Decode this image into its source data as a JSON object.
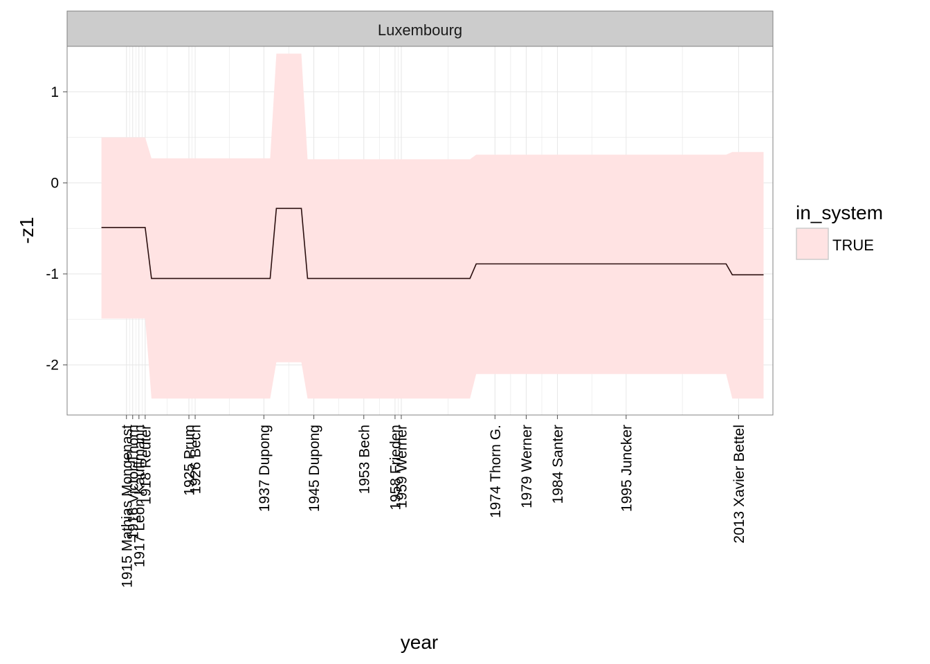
{
  "chart_data": {
    "type": "line",
    "facet": "Luxembourg",
    "xlabel": "year",
    "ylabel": "-z1",
    "ylim": [
      -2.55,
      1.5
    ],
    "xlim": [
      1905.5,
      2018.5
    ],
    "y_ticks": [
      1,
      0,
      -1,
      -2
    ],
    "x_ticks": [
      {
        "year": 1915,
        "label": "1915 Mathias Mongenast"
      },
      {
        "year": 1916,
        "label": "1916 Victor Thorn"
      },
      {
        "year": 1917,
        "label": "1917 Léon Kauffmann"
      },
      {
        "year": 1918,
        "label": "1918 Reuter"
      },
      {
        "year": 1925,
        "label": "1925 Prum"
      },
      {
        "year": 1926,
        "label": "1926 Bech"
      },
      {
        "year": 1937,
        "label": "1937 Dupong"
      },
      {
        "year": 1945,
        "label": "1945 Dupong"
      },
      {
        "year": 1953,
        "label": "1953 Bech"
      },
      {
        "year": 1958,
        "label": "1958 Frieden"
      },
      {
        "year": 1959,
        "label": "1959 Werner"
      },
      {
        "year": 1974,
        "label": "1974 Thorn G."
      },
      {
        "year": 1979,
        "label": "1979 Werner"
      },
      {
        "year": 1984,
        "label": "1984 Santer"
      },
      {
        "year": 1995,
        "label": "1995 Juncker"
      },
      {
        "year": 2013,
        "label": "2013 Xavier Bettel"
      }
    ],
    "x": [
      1911,
      1918,
      1919,
      1938,
      1939,
      1943,
      1944,
      1970,
      1971,
      2011,
      2012,
      2017
    ],
    "series": [
      {
        "values": [
          -0.49,
          -0.49,
          -1.05,
          -1.05,
          -0.28,
          -0.28,
          -1.05,
          -1.05,
          -0.89,
          -0.89,
          -1.01,
          -1.01
        ]
      }
    ],
    "ribbon": {
      "upper": [
        0.5,
        0.5,
        0.27,
        0.27,
        1.42,
        1.42,
        0.26,
        0.26,
        0.31,
        0.31,
        0.34,
        0.34
      ],
      "lower": [
        -1.49,
        -1.49,
        -2.37,
        -2.37,
        -1.97,
        -1.97,
        -2.37,
        -2.37,
        -2.1,
        -2.1,
        -2.37,
        -2.37
      ]
    },
    "legend": {
      "title": "in_system",
      "entries": [
        {
          "label": "TRUE",
          "color": "#ffe3e3"
        }
      ],
      "position": "right"
    },
    "grid": true,
    "colors": {
      "ribbon": "#ffe3e3",
      "line": "#2b0f0f",
      "strip": "#cccccc",
      "grid": "#e6e6e6",
      "panel_border": "#808080"
    }
  }
}
